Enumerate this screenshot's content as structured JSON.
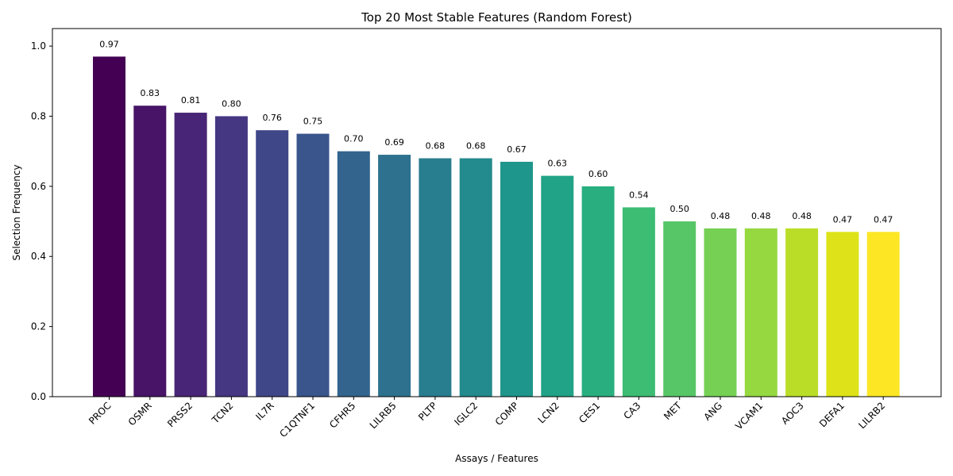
{
  "chart_data": {
    "type": "bar",
    "title": "Top 20 Most Stable Features (Random Forest)",
    "xlabel": "Assays / Features",
    "ylabel": "Selection Frequency",
    "ylim": [
      0,
      1.05
    ],
    "yticks": [
      "0.0",
      "0.2",
      "0.4",
      "0.6",
      "0.8",
      "1.0"
    ],
    "grid": false,
    "categories": [
      "PROC",
      "OSMR",
      "PRSS2",
      "TCN2",
      "IL7R",
      "C1QTNF1",
      "CFHR5",
      "LILRB5",
      "PLTP",
      "IGLC2",
      "COMP",
      "LCN2",
      "CES1",
      "CA3",
      "MET",
      "ANG",
      "VCAM1",
      "AOC3",
      "DEFA1",
      "LILRB2"
    ],
    "values": [
      0.97,
      0.83,
      0.81,
      0.8,
      0.76,
      0.75,
      0.7,
      0.69,
      0.68,
      0.68,
      0.67,
      0.63,
      0.6,
      0.54,
      0.5,
      0.48,
      0.48,
      0.48,
      0.47,
      0.47
    ],
    "data_labels": [
      "0.97",
      "0.83",
      "0.81",
      "0.80",
      "0.76",
      "0.75",
      "0.70",
      "0.69",
      "0.68",
      "0.68",
      "0.67",
      "0.63",
      "0.60",
      "0.54",
      "0.50",
      "0.48",
      "0.48",
      "0.48",
      "0.47",
      "0.47"
    ],
    "colors": [
      "#440154",
      "#481467",
      "#482576",
      "#453781",
      "#3f4788",
      "#39558c",
      "#32648e",
      "#2d718e",
      "#287d8e",
      "#238a8d",
      "#1f968b",
      "#20a386",
      "#29af7f",
      "#3dbc74",
      "#56c667",
      "#75d054",
      "#95d840",
      "#bade28",
      "#dde318",
      "#fde725"
    ]
  }
}
